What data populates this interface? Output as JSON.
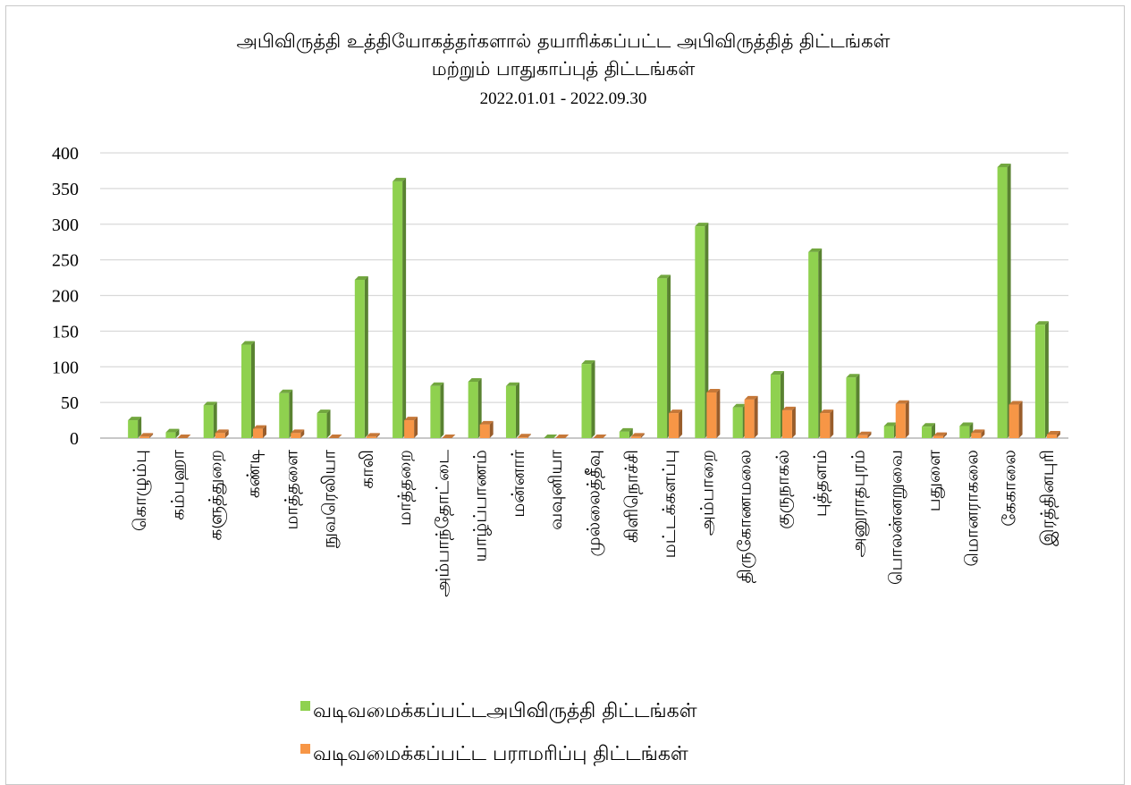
{
  "chart_data": {
    "type": "bar",
    "title": [
      "அபிவிருத்தி உத்தியோகத்தர்களால் தயாரிக்கப்பட்ட அபிவிருத்தித் திட்டங்கள்",
      "மற்றும் பாதுகாப்புத் திட்டங்கள்"
    ],
    "subtitle": "2022.01.01 - 2022.09.30",
    "xlabel": "",
    "ylabel": "",
    "ylim": [
      0,
      400
    ],
    "yticks": [
      0,
      50,
      100,
      150,
      200,
      250,
      300,
      350,
      400
    ],
    "grid": true,
    "legend_position": "bottom",
    "categories": [
      "கொழும்பு",
      "கம்பஹா",
      "களுத்துறை",
      "கண்டி",
      "மாத்தளை",
      "நுவரெலியா",
      "காலி",
      "மாத்தறை",
      "அம்பாந்தோட்டை",
      "யாழ்ப்பாணம்",
      "மன்னார்",
      "வவுனியா",
      "முல்லைத்தீவு",
      "கிளிநொச்சி",
      "மட்டக்களப்பு",
      "அம்பாறை",
      "திருகோணமலை",
      "குருநாகல்",
      "புத்தளம்",
      "அனுராதபுரம்",
      "பொலன்னறுவை",
      "பதுளை",
      "மொனராகலை",
      "கேகாலை",
      "இரத்தினபுரி"
    ],
    "series": [
      {
        "name": "வடிவமைக்கப்பட்டஅபிவிருத்தி திட்டங்கள்",
        "color": "#8fd14f",
        "values": [
          25,
          8,
          46,
          131,
          63,
          35,
          222,
          360,
          73,
          79,
          73,
          0,
          104,
          9,
          224,
          297,
          43,
          89,
          261,
          85,
          17,
          16,
          17,
          380,
          159
        ]
      },
      {
        "name": "வடிவமைக்கப்பட்ட பராமரிப்பு திட்டங்கள்",
        "color": "#f79646",
        "values": [
          2,
          0,
          7,
          13,
          7,
          0,
          2,
          25,
          0,
          19,
          1,
          0,
          0,
          2,
          35,
          64,
          54,
          39,
          35,
          4,
          48,
          3,
          7,
          47,
          5
        ]
      }
    ]
  }
}
